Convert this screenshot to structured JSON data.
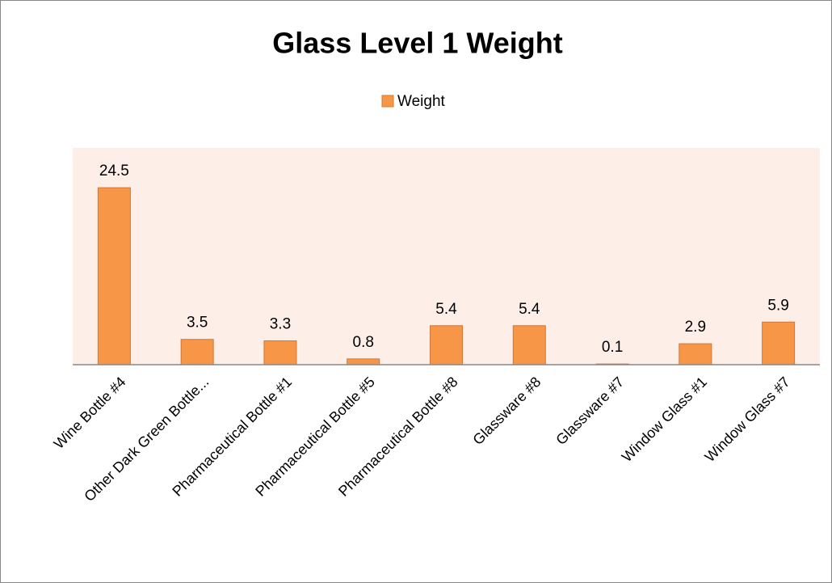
{
  "chart_data": {
    "type": "bar",
    "title": "Glass Level 1 Weight",
    "categories": [
      "Wine Bottle #4",
      "Other Dark Green Bottle...",
      "Pharmaceutical Bottle #1",
      "Pharmaceutical Bottle #5",
      "Pharmaceutical Bottle #8",
      "Glassware #8",
      "Glassware #7",
      "Window Glass #1",
      "Window Glass #7"
    ],
    "series": [
      {
        "name": "Weight",
        "color": "#f79646",
        "values": [
          24.5,
          3.5,
          3.3,
          0.8,
          5.4,
          5.4,
          0.1,
          2.9,
          5.9
        ]
      }
    ],
    "ylim": [
      0,
      30
    ],
    "legend": "top"
  }
}
